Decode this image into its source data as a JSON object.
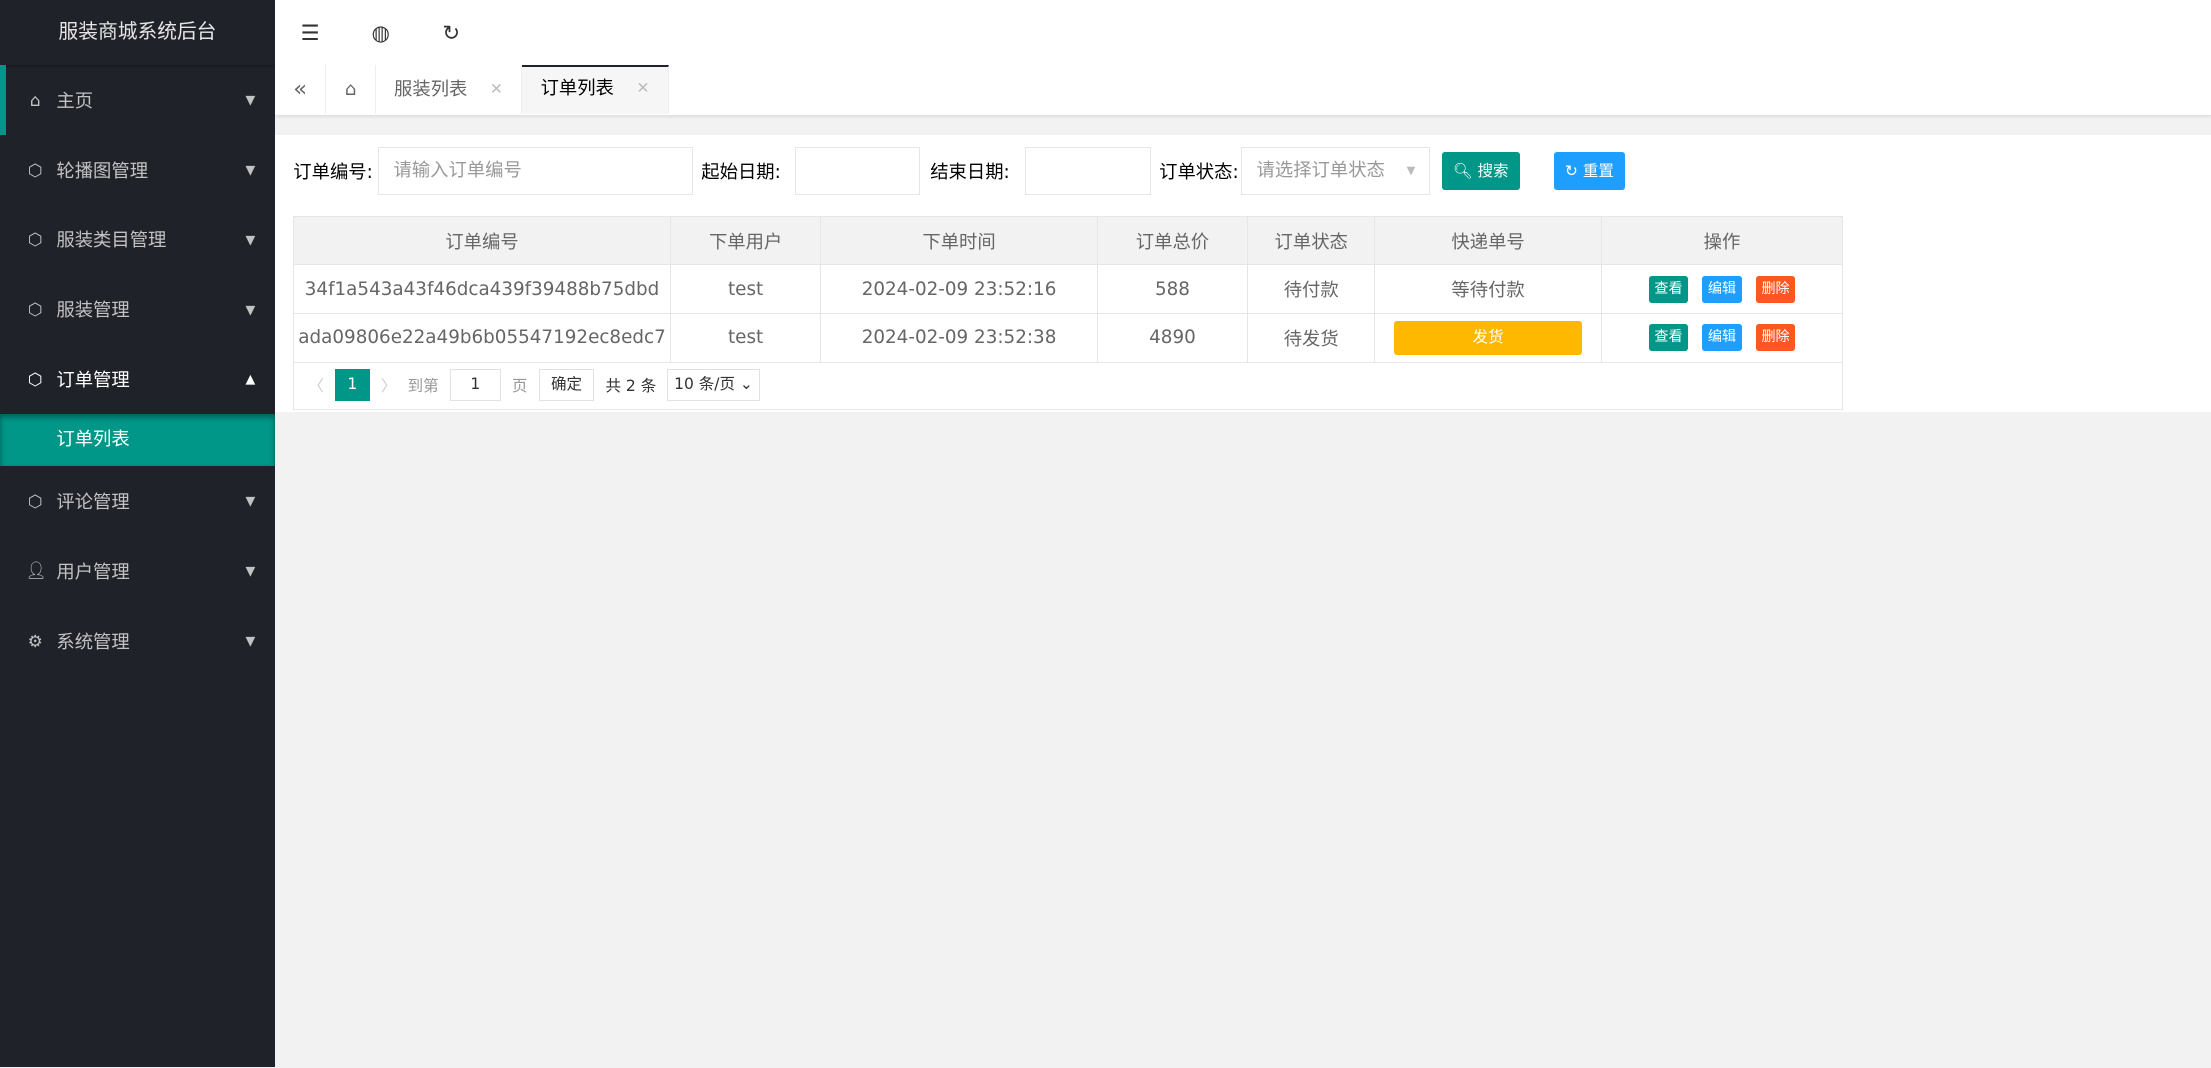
{
  "sidebar": {
    "title": "服装商城系统后台",
    "items": [
      {
        "label": "主页",
        "icon": "home-icon"
      },
      {
        "label": "轮播图管理",
        "icon": "cube-icon"
      },
      {
        "label": "服装类目管理",
        "icon": "cube-icon"
      },
      {
        "label": "服装管理",
        "icon": "cube-icon"
      },
      {
        "label": "订单管理",
        "icon": "cube-icon",
        "expanded": true,
        "children": [
          {
            "label": "订单列表",
            "active": true
          }
        ]
      },
      {
        "label": "评论管理",
        "icon": "cube-icon"
      },
      {
        "label": "用户管理",
        "icon": "user-icon"
      },
      {
        "label": "系统管理",
        "icon": "gear-icon"
      }
    ]
  },
  "tabs": [
    {
      "label": "服装列表"
    },
    {
      "label": "订单列表",
      "active": true
    }
  ],
  "search": {
    "order_no_label": "订单编号:",
    "order_no_placeholder": "请输入订单编号",
    "start_label": "起始日期:",
    "end_label": "结束日期:",
    "status_label": "订单状态:",
    "status_placeholder": "请选择订单状态",
    "search_btn": "搜索",
    "reset_btn": "重置"
  },
  "table": {
    "columns": [
      "订单编号",
      "下单用户",
      "下单时间",
      "订单总价",
      "订单状态",
      "快递单号",
      "操作"
    ],
    "rows": [
      {
        "id": "34f1a543a43f46dca439f39488b75dbd",
        "user": "test",
        "time": "2024-02-09 23:52:16",
        "total": "588",
        "status": "待付款",
        "express": "等待付款"
      },
      {
        "id": "ada09806e22a49b6b05547192ec8edc7",
        "user": "test",
        "time": "2024-02-09 23:52:38",
        "total": "4890",
        "status": "待发货",
        "express_button": "发货"
      }
    ],
    "actions": {
      "view": "查看",
      "edit": "编辑",
      "delete": "删除"
    }
  },
  "pager": {
    "current": "1",
    "goto_label": "到第",
    "goto_value": "1",
    "page_unit": "页",
    "confirm": "确定",
    "total": "共 2 条",
    "page_size": "10 条/页"
  },
  "colors": {
    "sidebar": "#20222a",
    "primary": "#009688",
    "blue": "#1e9fff",
    "danger": "#ff5722",
    "warn": "#ffb800"
  }
}
